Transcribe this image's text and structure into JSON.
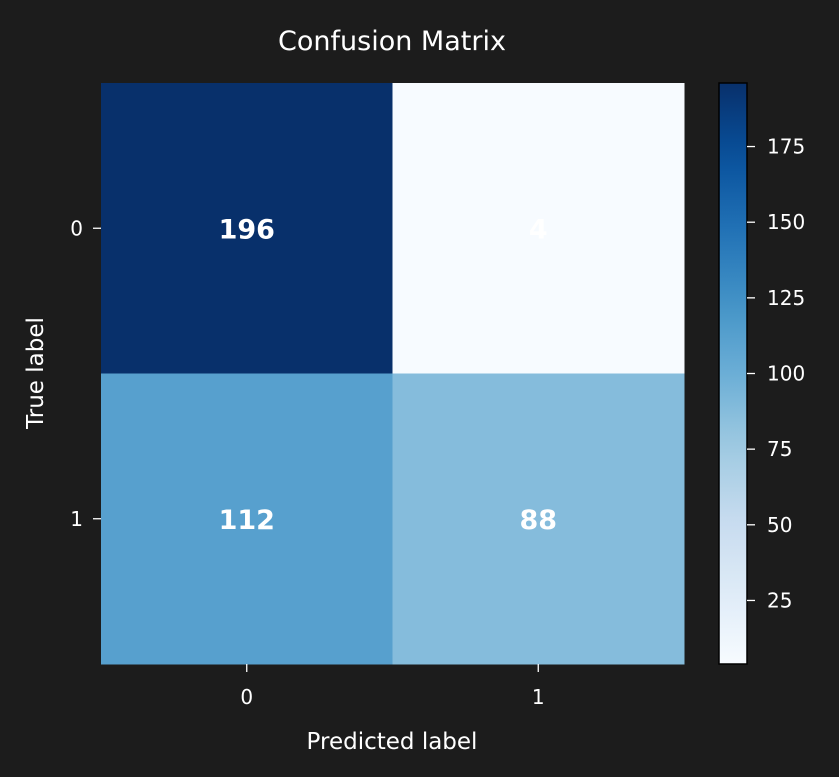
{
  "chart_data": {
    "type": "heatmap",
    "title": "Confusion Matrix",
    "xlabel": "Predicted label",
    "ylabel": "True label",
    "x_categories": [
      "0",
      "1"
    ],
    "y_categories": [
      "0",
      "1"
    ],
    "values": [
      [
        196,
        4
      ],
      [
        112,
        88
      ]
    ],
    "colormap": "Blues",
    "color_range": [
      4,
      196
    ],
    "colorbar_ticks": [
      25,
      50,
      75,
      100,
      125,
      150,
      175
    ],
    "text_color": "#ffffff",
    "background": "#1c1c1c"
  }
}
